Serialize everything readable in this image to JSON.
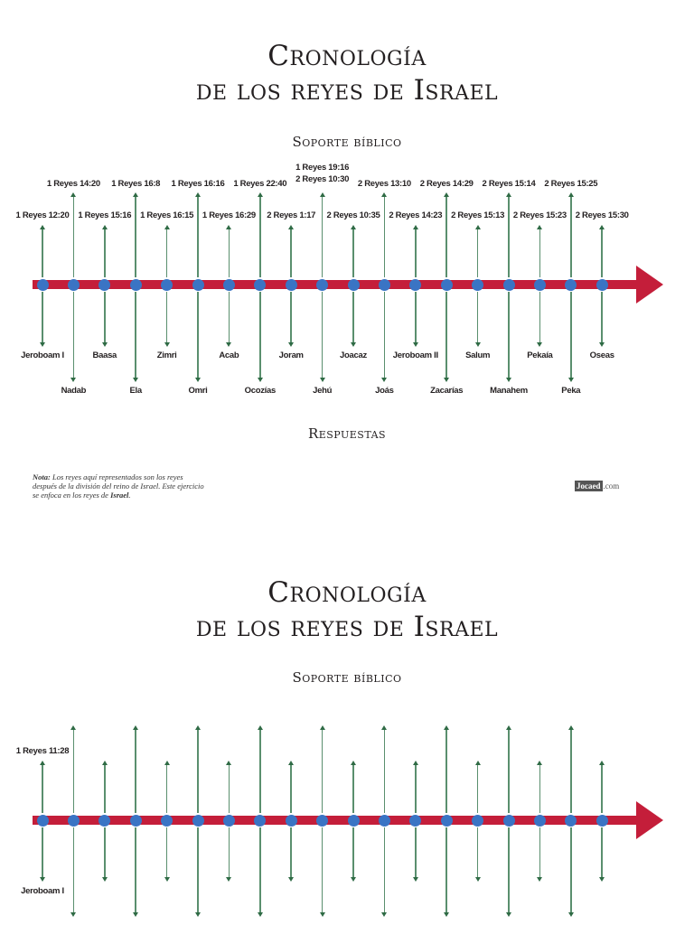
{
  "page1": {
    "title_line1": "Cronología",
    "title_line2": "de los reyes de Israel",
    "subtitle": "Soporte bíblico",
    "answers_heading": "Respuestas",
    "note_label": "Nota:",
    "note_text": " Los reyes aquí representados son los reyes después de la división del reino de Israel. Este ejercicio se enfoca en los reyes de ",
    "note_bold": "Israel",
    "note_end": ".",
    "logo_box": "Jocaed",
    "logo_com": ".com"
  },
  "page2": {
    "title_line1": "Cronología",
    "title_line2": "de los reyes de Israel",
    "subtitle": "Soporte bíblico",
    "first_reference": "1 Reyes 11:28",
    "first_king": "Jeroboam I"
  },
  "colors": {
    "timeline_bar": "#c41e3a",
    "marker": "#3a74c4",
    "connector": "#5a8f6e",
    "text": "#231f20"
  },
  "chart_data": {
    "type": "timeline",
    "title": "Cronología de los reyes de Israel",
    "subtitle": "Soporte bíblico",
    "kings": [
      {
        "name": "Jeroboam I",
        "reference": "1 Reyes 12:20",
        "row": "near"
      },
      {
        "name": "Nadab",
        "reference": "1 Reyes 14:20",
        "row": "far"
      },
      {
        "name": "Baasa",
        "reference": "1 Reyes 15:16",
        "row": "near"
      },
      {
        "name": "Ela",
        "reference": "1 Reyes 16:8",
        "row": "far"
      },
      {
        "name": "Zimri",
        "reference": "1 Reyes 16:15",
        "row": "near"
      },
      {
        "name": "Omri",
        "reference": "1 Reyes 16:16",
        "row": "far"
      },
      {
        "name": "Acab",
        "reference": "1 Reyes 16:29",
        "row": "near"
      },
      {
        "name": "Ocozías",
        "reference": "1 Reyes 22:40",
        "row": "far"
      },
      {
        "name": "Joram",
        "reference": "2 Reyes 1:17",
        "row": "near"
      },
      {
        "name": "Jehú",
        "reference": "1 Reyes 19:16 / 2 Reyes 10:30",
        "row": "far"
      },
      {
        "name": "Joacaz",
        "reference": "2 Reyes 10:35",
        "row": "near"
      },
      {
        "name": "Joás",
        "reference": "2 Reyes 13:10",
        "row": "far"
      },
      {
        "name": "Jeroboam II",
        "reference": "2 Reyes 14:23",
        "row": "near"
      },
      {
        "name": "Zacarías",
        "reference": "2 Reyes 14:29",
        "row": "far"
      },
      {
        "name": "Salum",
        "reference": "2 Reyes 15:13",
        "row": "near"
      },
      {
        "name": "Manahem",
        "reference": "2 Reyes 15:14",
        "row": "far"
      },
      {
        "name": "Pekaía",
        "reference": "2 Reyes 15:23",
        "row": "near"
      },
      {
        "name": "Peka",
        "reference": "2 Reyes 15:25",
        "row": "far"
      },
      {
        "name": "Oseas",
        "reference": "2 Reyes 15:30",
        "row": "near"
      }
    ]
  },
  "timeline1": {
    "refs": [
      "1 Reyes 12:20",
      "1 Reyes 14:20",
      "1 Reyes 15:16",
      "1 Reyes 16:8",
      "1 Reyes 16:15",
      "1 Reyes 16:16",
      "1 Reyes 16:29",
      "1 Reyes 22:40",
      "2 Reyes 1:17",
      "1 Reyes 19:16",
      "2 Reyes 10:35",
      "2 Reyes 13:10",
      "2 Reyes 14:23",
      "2 Reyes 14:29",
      "2 Reyes 15:13",
      "2 Reyes 15:14",
      "2 Reyes 15:23",
      "2 Reyes 15:25",
      "2 Reyes 15:30"
    ],
    "refs_extra_line": {
      "index": 9,
      "text": "2 Reyes 10:30"
    },
    "kings": [
      "Jeroboam I",
      "Nadab",
      "Baasa",
      "Ela",
      "Zimri",
      "Omri",
      "Acab",
      "Ocozías",
      "Joram",
      "Jehú",
      "Joacaz",
      "Joás",
      "Jeroboam II",
      "Zacarías",
      "Salum",
      "Manahem",
      "Pekaía",
      "Peka",
      "Oseas"
    ]
  }
}
